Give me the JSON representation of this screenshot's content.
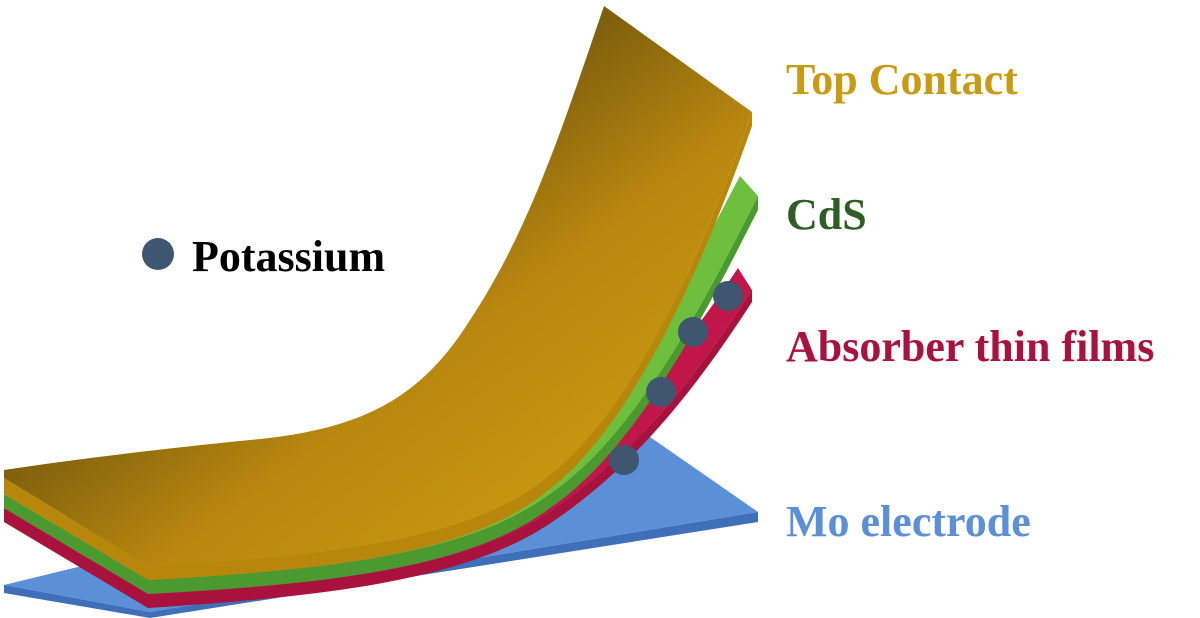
{
  "legend": {
    "potassium_label": "Potassium",
    "potassium_color": "#3e5670"
  },
  "layers": [
    {
      "key": "top_contact",
      "label": "Top Contact",
      "color": "#c99b12"
    },
    {
      "key": "cds",
      "label": "CdS",
      "color": "#2e5e25"
    },
    {
      "key": "absorber",
      "label": "Absorber thin films",
      "color": "#a8123d"
    },
    {
      "key": "mo",
      "label": "Mo electrode",
      "color": "#5b8fd6"
    }
  ]
}
